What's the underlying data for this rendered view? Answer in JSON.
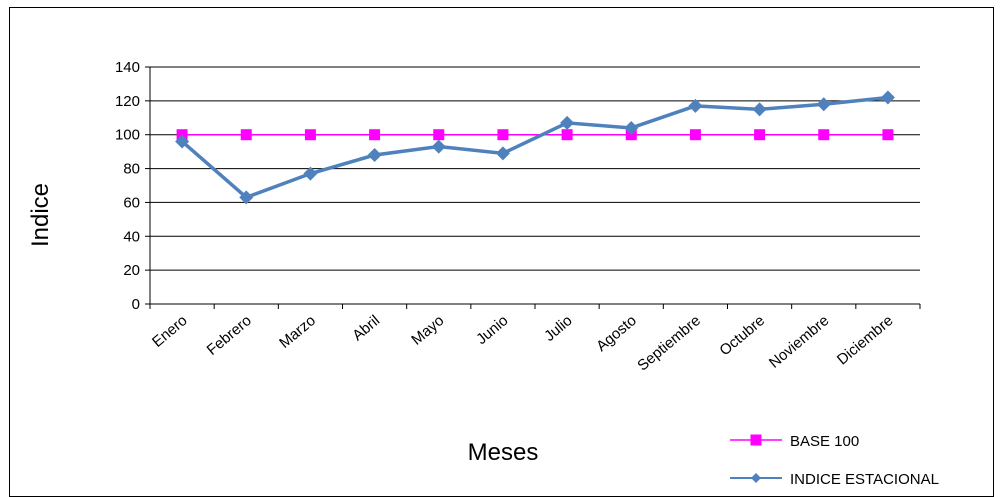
{
  "chart_data": {
    "type": "line",
    "title": "",
    "xlabel": "Meses",
    "ylabel": "Indice",
    "ylim": [
      0,
      140
    ],
    "yticks": [
      0,
      20,
      40,
      60,
      80,
      100,
      120,
      140
    ],
    "grid": true,
    "legend_position": "bottom-right",
    "categories": [
      "Enero",
      "Febrero",
      "Marzo",
      "Abril",
      "Mayo",
      "Junio",
      "Julio",
      "Agosto",
      "Septiembre",
      "Octubre",
      "Noviembre",
      "Diciembre"
    ],
    "series": [
      {
        "name": "BASE 100",
        "color": "#ff00ff",
        "marker": "square",
        "values": [
          100,
          100,
          100,
          100,
          100,
          100,
          100,
          100,
          100,
          100,
          100,
          100
        ]
      },
      {
        "name": "INDICE ESTACIONAL",
        "color": "#4f81bd",
        "marker": "diamond",
        "values": [
          96,
          63,
          77,
          88,
          93,
          89,
          107,
          104,
          117,
          115,
          118,
          122
        ]
      }
    ]
  }
}
